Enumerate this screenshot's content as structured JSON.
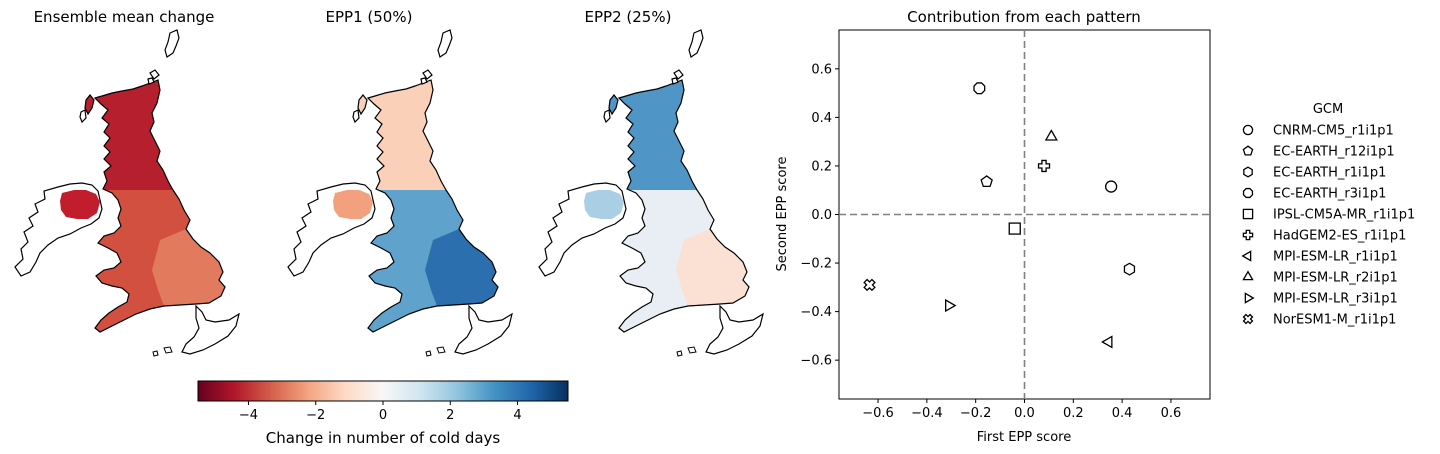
{
  "maps": [
    {
      "title": "Ensemble mean change",
      "fill_key": "mean"
    },
    {
      "title": "EPP1 (50%)",
      "fill_key": "epp1"
    },
    {
      "title": "EPP2 (25%)",
      "fill_key": "epp2"
    }
  ],
  "colorbar": {
    "label": "Change in number of cold days",
    "range": [
      -5.5,
      5.5
    ],
    "ticks": [
      {
        "value": -4,
        "label": "−4"
      },
      {
        "value": -2,
        "label": "−2"
      },
      {
        "value": 0,
        "label": "0"
      },
      {
        "value": 2,
        "label": "2"
      },
      {
        "value": 4,
        "label": "4"
      }
    ],
    "colormap": "RdBu",
    "colors": [
      "#67001f",
      "#b2182b",
      "#d6604d",
      "#f4a582",
      "#fddbc7",
      "#f7f7f7",
      "#d1e5f0",
      "#92c5de",
      "#4393c3",
      "#2166ac",
      "#053061"
    ]
  },
  "map_fill_colors": {
    "mean": {
      "main": "#d1503f",
      "north": "#b51f2e",
      "ireland": "#c21d2c",
      "southeast": "#e27a5e"
    },
    "epp1": {
      "main": "#5fa2cc",
      "north": "#fbd0b9",
      "ireland": "#f2a07d",
      "southeast": "#2b6fae"
    },
    "epp2": {
      "main": "#e8eef3",
      "north": "#4f95c6",
      "ireland": "#aacfe5",
      "southeast": "#fbe1d4"
    }
  },
  "chart_data": {
    "type": "scatter",
    "title": "Contribution from each pattern",
    "xlabel": "First EPP score",
    "ylabel": "Second EPP score",
    "xlim": [
      -0.76,
      0.76
    ],
    "ylim": [
      -0.76,
      0.76
    ],
    "xticks": [
      {
        "value": -0.6,
        "label": "−0.6"
      },
      {
        "value": -0.4,
        "label": "−0.4"
      },
      {
        "value": -0.2,
        "label": "−0.2"
      },
      {
        "value": 0.0,
        "label": "0.0"
      },
      {
        "value": 0.2,
        "label": "0.2"
      },
      {
        "value": 0.4,
        "label": "0.4"
      },
      {
        "value": 0.6,
        "label": "0.6"
      }
    ],
    "yticks": [
      {
        "value": -0.6,
        "label": "−0.6"
      },
      {
        "value": -0.4,
        "label": "−0.4"
      },
      {
        "value": -0.2,
        "label": "−0.2"
      },
      {
        "value": 0.0,
        "label": "0.0"
      },
      {
        "value": 0.2,
        "label": "0.2"
      },
      {
        "value": 0.4,
        "label": "0.4"
      },
      {
        "value": 0.6,
        "label": "0.6"
      }
    ],
    "grid": false,
    "reference_lines": {
      "x": 0,
      "y": 0,
      "style": "dashed",
      "color": "#808080"
    },
    "legend": {
      "title": "GCM",
      "placement": "outside-right"
    },
    "series": [
      {
        "name": "CNRM-CM5_r1i1p1",
        "marker": "circle",
        "x": 0.355,
        "y": 0.115
      },
      {
        "name": "EC-EARTH_r12i1p1",
        "marker": "pentagon",
        "x": -0.155,
        "y": 0.135
      },
      {
        "name": "EC-EARTH_r1i1p1",
        "marker": "hexagon",
        "x": 0.43,
        "y": -0.225
      },
      {
        "name": "EC-EARTH_r3i1p1",
        "marker": "octagon",
        "x": -0.185,
        "y": 0.52
      },
      {
        "name": "IPSL-CM5A-MR_r1i1p1",
        "marker": "square",
        "x": -0.04,
        "y": -0.058
      },
      {
        "name": "HadGEM2-ES_r1i1p1",
        "marker": "plus",
        "x": 0.08,
        "y": 0.2
      },
      {
        "name": "MPI-ESM-LR_r1i1p1",
        "marker": "triangle-left",
        "x": 0.345,
        "y": -0.525
      },
      {
        "name": "MPI-ESM-LR_r2i1p1",
        "marker": "triangle-up",
        "x": 0.11,
        "y": 0.32
      },
      {
        "name": "MPI-ESM-LR_r3i1p1",
        "marker": "triangle-right",
        "x": -0.31,
        "y": -0.375
      },
      {
        "name": "NorESM1-M_r1i1p1",
        "marker": "x-filled",
        "x": -0.635,
        "y": -0.29
      }
    ]
  }
}
